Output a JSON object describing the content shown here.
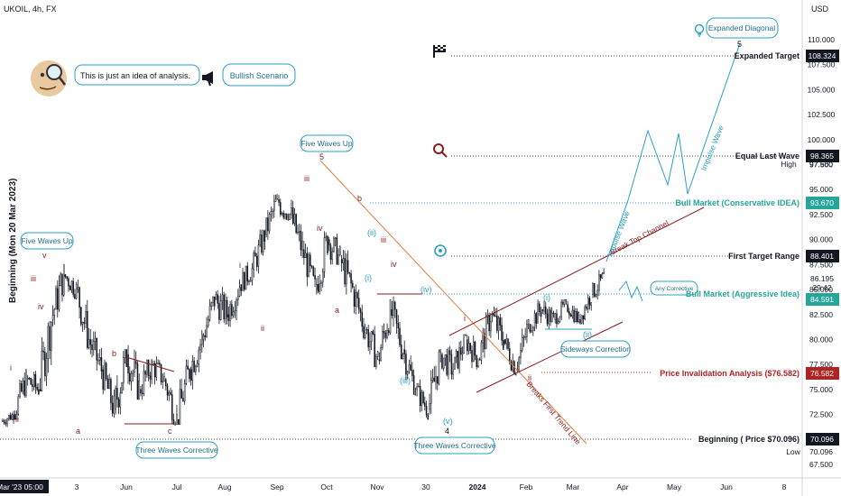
{
  "header": {
    "symbol": "UKOIL, 4h, FX",
    "currency": "USD"
  },
  "left_axis_label": "Beginning (Mon 20 Mar 2023)",
  "note": {
    "text": "This is just an idea of analysis.",
    "scenario": "Bullish Scenario"
  },
  "chart_data": {
    "type": "candlestick-annotated",
    "y_ticks": [
      "110.000",
      "107.500",
      "105.000",
      "102.500",
      "100.000",
      "97.500",
      "95.000",
      "92.500",
      "90.000",
      "87.500",
      "85.000",
      "82.500",
      "80.000",
      "77.500",
      "75.000",
      "72.500",
      "70.000",
      "67.500"
    ],
    "x_ticks": [
      "Mar '23 05:00",
      "3",
      "Jun",
      "Jul",
      "Aug",
      "Sep",
      "Oct",
      "Nov",
      "30",
      "2024",
      "Feb",
      "Mar",
      "Apr",
      "May",
      "Jun",
      "8"
    ],
    "price_labels": [
      {
        "label": "Expanded Target",
        "value": "108.324",
        "color": "#131722"
      },
      {
        "label": "Equal Last Wave",
        "value": "98.365",
        "color": "#131722"
      },
      {
        "label": "Bull Market (Conservative IDEA)",
        "value": "93.670",
        "color": "#26a69a"
      },
      {
        "label": "First Target Range",
        "value": "88.401",
        "color": "#131722"
      },
      {
        "label": "Bull Market (Aggressive Idea)",
        "value": "84.591",
        "color": "#26a69a"
      },
      {
        "label": "Price Invalidation Analysis ($76.582)",
        "value": "76.582",
        "color": "#b22222"
      },
      {
        "label": "Beginning ( Price $70.096)",
        "value": "70.096",
        "color": "#131722"
      }
    ],
    "axis_extra": {
      "high_label": "High",
      "high_value": "97.660",
      "low_label": "Low",
      "low_value": "70.096",
      "last_price": "86.195",
      "countdown": "29:42"
    },
    "bubbles": [
      "Five Waves Up",
      "Five Waves Up",
      "Three Waves Corrective",
      "Three Waves Corrective",
      "Sideways Correction",
      "Any Corrective",
      "Expanded Diagonal"
    ],
    "slanted_labels": [
      "Break Top Channel",
      "Breaks First Trend Line",
      "Impulse Wave",
      "Impulse Wave"
    ],
    "wave_labels": [
      "i",
      "ii",
      "iii",
      "iv",
      "v",
      "a",
      "b",
      "c",
      "i",
      "ii",
      "iii",
      "iv",
      "5",
      "iii",
      "iv",
      "a",
      "b",
      "(i)",
      "(ii)",
      "(iii)",
      "(iv)",
      "(v)",
      "4",
      "i",
      "ii",
      "(i)",
      "(ii)",
      "5"
    ],
    "candles": [
      [
        71.8,
        73.2,
        71.0,
        72.5
      ],
      [
        72.5,
        77.0,
        72.0,
        76.0
      ],
      [
        76.0,
        79.0,
        74.5,
        75.0
      ],
      [
        75.0,
        83.0,
        74.8,
        82.0
      ],
      [
        82.0,
        87.5,
        81.0,
        86.5
      ],
      [
        86.5,
        88.0,
        84.0,
        85.0
      ],
      [
        85.0,
        86.0,
        79.0,
        80.0
      ],
      [
        80.0,
        82.0,
        76.0,
        77.0
      ],
      [
        77.0,
        78.0,
        72.0,
        73.0
      ],
      [
        73.0,
        79.0,
        71.0,
        78.5
      ],
      [
        78.5,
        81.0,
        74.0,
        75.0
      ],
      [
        75.0,
        78.0,
        72.5,
        77.5
      ],
      [
        77.5,
        79.5,
        75.0,
        76.0
      ],
      [
        76.0,
        77.0,
        71.5,
        72.0
      ],
      [
        72.0,
        78.0,
        71.5,
        77.0
      ],
      [
        77.0,
        81.0,
        75.0,
        80.0
      ],
      [
        80.0,
        84.5,
        79.0,
        84.0
      ],
      [
        84.0,
        87.0,
        81.5,
        82.5
      ],
      [
        82.5,
        86.5,
        81.0,
        85.5
      ],
      [
        85.5,
        88.0,
        84.0,
        87.0
      ],
      [
        87.0,
        91.0,
        86.0,
        90.5
      ],
      [
        90.5,
        94.5,
        89.5,
        94.0
      ],
      [
        94.0,
        97.7,
        92.0,
        92.5
      ],
      [
        92.5,
        94.0,
        88.0,
        89.0
      ],
      [
        89.0,
        90.0,
        84.5,
        85.0
      ],
      [
        85.0,
        91.0,
        84.5,
        90.0
      ],
      [
        90.0,
        93.0,
        87.5,
        88.0
      ],
      [
        88.0,
        90.0,
        84.0,
        85.0
      ],
      [
        85.0,
        86.0,
        80.0,
        81.0
      ],
      [
        81.0,
        82.5,
        77.0,
        78.0
      ],
      [
        78.0,
        84.0,
        77.5,
        83.0
      ],
      [
        83.0,
        84.5,
        78.0,
        79.0
      ],
      [
        79.0,
        80.0,
        74.5,
        75.0
      ],
      [
        75.0,
        76.0,
        72.0,
        73.0
      ],
      [
        73.0,
        79.0,
        72.5,
        78.5
      ],
      [
        78.5,
        81.0,
        76.0,
        77.0
      ],
      [
        77.0,
        80.5,
        76.0,
        80.0
      ],
      [
        80.0,
        81.5,
        77.0,
        78.0
      ],
      [
        78.0,
        83.0,
        77.5,
        82.5
      ],
      [
        82.5,
        84.5,
        79.0,
        80.0
      ],
      [
        80.0,
        81.0,
        76.5,
        77.0
      ],
      [
        77.0,
        82.0,
        76.8,
        81.5
      ],
      [
        81.5,
        84.0,
        80.0,
        83.0
      ],
      [
        83.0,
        84.5,
        81.0,
        82.0
      ],
      [
        82.0,
        84.0,
        81.0,
        83.5
      ],
      [
        83.5,
        84.0,
        81.0,
        82.0
      ],
      [
        82.0,
        85.0,
        81.5,
        84.5
      ],
      [
        84.5,
        87.5,
        84.0,
        86.2
      ]
    ]
  }
}
